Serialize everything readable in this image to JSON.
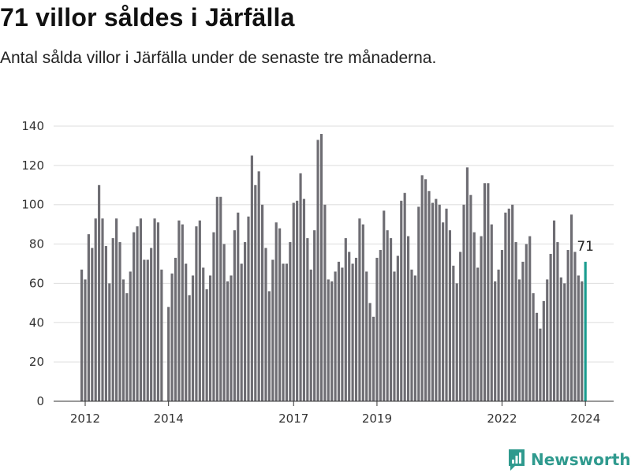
{
  "header": {
    "title": "71 villor såldes i Järfälla",
    "subtitle": "Antal sålda villor i Järfälla under de senaste tre månaderna."
  },
  "brand": {
    "name": "Newsworthy",
    "icon": "newsworthy-logo-icon",
    "color": "#2f9a8e"
  },
  "colors": {
    "bar": "#6e6d73",
    "highlight": "#1a9c8f",
    "grid": "#dddddd",
    "axis": "#333333"
  },
  "chart_data": {
    "type": "bar",
    "title": "",
    "xlabel": "",
    "ylabel": "",
    "ylim": [
      0,
      140
    ],
    "yticks": [
      0,
      20,
      40,
      60,
      80,
      100,
      120,
      140
    ],
    "grid": true,
    "x_start": "2011-12",
    "x_end": "2024-02",
    "xtick_labels": [
      {
        "label": "2012",
        "month": "2012-01"
      },
      {
        "label": "2014",
        "month": "2014-01"
      },
      {
        "label": "2017",
        "month": "2017-01"
      },
      {
        "label": "2019",
        "month": "2019-01"
      },
      {
        "label": "2022",
        "month": "2022-01"
      },
      {
        "label": "2024",
        "month": "2024-01"
      }
    ],
    "values": [
      67,
      62,
      85,
      78,
      93,
      110,
      93,
      79,
      60,
      83,
      93,
      81,
      62,
      55,
      66,
      86,
      89,
      93,
      72,
      72,
      78,
      93,
      91,
      67,
      0,
      48,
      65,
      73,
      92,
      90,
      70,
      54,
      64,
      89,
      92,
      68,
      57,
      64,
      86,
      104,
      104,
      80,
      61,
      64,
      87,
      96,
      70,
      81,
      94,
      125,
      110,
      117,
      100,
      78,
      56,
      72,
      91,
      88,
      70,
      70,
      81,
      101,
      102,
      116,
      103,
      83,
      67,
      87,
      133,
      136,
      100,
      62,
      61,
      66,
      71,
      68,
      83,
      76,
      70,
      73,
      93,
      90,
      66,
      50,
      43,
      73,
      77,
      97,
      87,
      83,
      66,
      74,
      102,
      106,
      84,
      67,
      64,
      99,
      115,
      113,
      107,
      101,
      103,
      100,
      91,
      98,
      87,
      69,
      60,
      76,
      100,
      119,
      105,
      86,
      68,
      84,
      111,
      111,
      90,
      61,
      67,
      77,
      96,
      98,
      100,
      81,
      62,
      71,
      80,
      84,
      55,
      45,
      37,
      51,
      62,
      75,
      92,
      81,
      63,
      60,
      77,
      95,
      76,
      64,
      61,
      71
    ],
    "highlight_last": true,
    "last_label": "71"
  }
}
